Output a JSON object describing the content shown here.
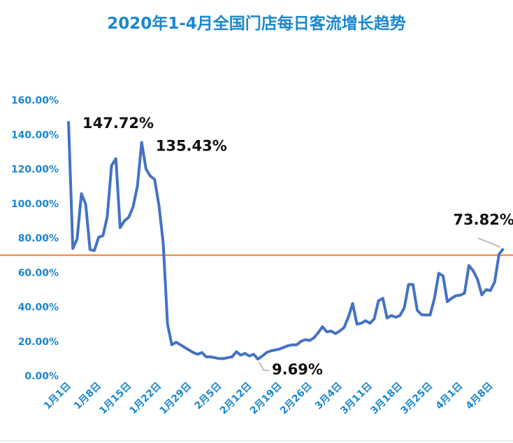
{
  "chart_data": {
    "type": "line",
    "title": "2020年1-4月全国门店每日客流增长趋势",
    "xlabel": "",
    "ylabel": "",
    "ylim": [
      0,
      160
    ],
    "y_ticks": [
      "0.00%",
      "20.00%",
      "40.00%",
      "60.00%",
      "80.00%",
      "100.00%",
      "120.00%",
      "140.00%",
      "160.00%"
    ],
    "x_tick_labels": [
      "1月1日",
      "1月8日",
      "1月15日",
      "1月22日",
      "1月29日",
      "2月5日",
      "2月12日",
      "2月19日",
      "2月26日",
      "3月4日",
      "3月11日",
      "3月18日",
      "3月25日",
      "4月1日",
      "4月8日"
    ],
    "x_tick_every_days": 7,
    "grid": false,
    "legend": "none",
    "series": [
      {
        "name": "每日客流增长",
        "color": "#4472C4",
        "start_date": "1月1日",
        "values": [
          147.72,
          73.9,
          79.3,
          105.7,
          99.6,
          73.2,
          72.7,
          80.4,
          81.3,
          92.2,
          122,
          126,
          86,
          90,
          92,
          98,
          110,
          135.43,
          120,
          116,
          114,
          99,
          77,
          30,
          18,
          19.5,
          18,
          16.5,
          15,
          13.5,
          12.5,
          13.5,
          11,
          11,
          10.5,
          10,
          10,
          10.5,
          11,
          14,
          12,
          13,
          11.5,
          12.5,
          9.69,
          11.5,
          13.5,
          14.5,
          15,
          15.5,
          16.5,
          17.5,
          18,
          18,
          20,
          21,
          20.5,
          22,
          25,
          28.5,
          25.5,
          26,
          24.5,
          26,
          28,
          34,
          42,
          30,
          30.5,
          32,
          30.5,
          33,
          43.5,
          45,
          33.5,
          35,
          34,
          35,
          39.5,
          53,
          53,
          38,
          35.5,
          35.3,
          35.3,
          45,
          59.5,
          58,
          43,
          45,
          46.5,
          46.8,
          48,
          64,
          61,
          56,
          47,
          50,
          49.5,
          54.5,
          70.5,
          73.82
        ]
      }
    ],
    "reference_line": {
      "value": 70,
      "color": "#ED7D31"
    },
    "annotations": [
      {
        "index": 0,
        "text": "147.72%"
      },
      {
        "index": 17,
        "text": "135.43%"
      },
      {
        "index": 44,
        "text": "9.69%"
      },
      {
        "index": 101,
        "text": "73.82%"
      }
    ]
  }
}
